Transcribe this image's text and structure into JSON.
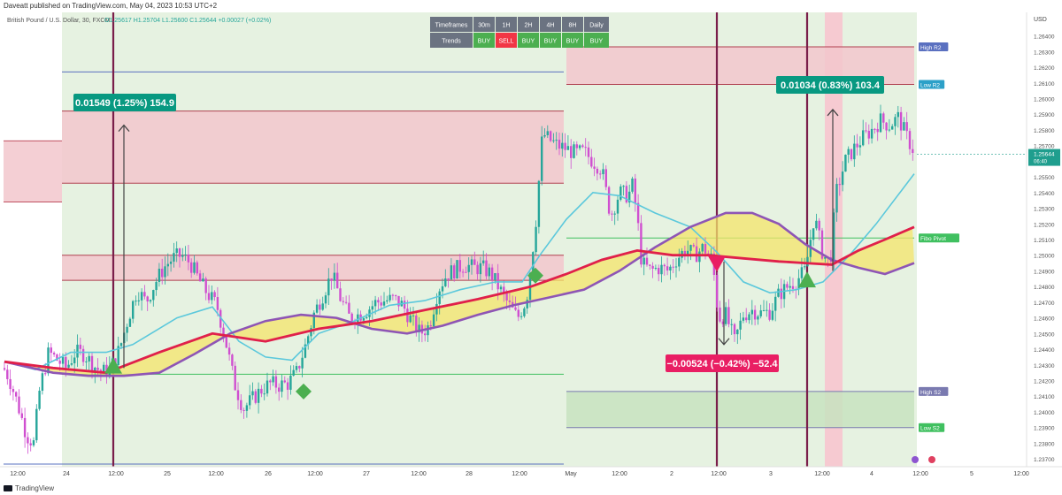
{
  "header": {
    "published": "Daveatt published on TradingView.com, May 04, 2023 10:53 UTC+2"
  },
  "footer": {
    "brand": "TradingView"
  },
  "chart_data": {
    "type": "candlestick",
    "title": "British Pound / U.S. Dollar, 30, FXCM",
    "ohlc": "O1.25617 H1.25704 L1.25600 C1.25644 +0.00027 (+0.02%)",
    "price_axis_label": "USD",
    "ylim": [
      1.2365,
      1.2655
    ],
    "yticks": [
      "1.26400",
      "1.26300",
      "1.26200",
      "1.26100",
      "1.26000",
      "1.25900",
      "1.25800",
      "1.25700",
      "1.25600",
      "1.25500",
      "1.25400",
      "1.25300",
      "1.25200",
      "1.25100",
      "1.25000",
      "1.24900",
      "1.24800",
      "1.24700",
      "1.24600",
      "1.24500",
      "1.24400",
      "1.24300",
      "1.24200",
      "1.24100",
      "1.24000",
      "1.23900",
      "1.23800",
      "1.23700"
    ],
    "xticks": [
      "12:00",
      "24",
      "12:00",
      "25",
      "12:00",
      "26",
      "12:00",
      "27",
      "12:00",
      "28",
      "12:00",
      "May",
      "12:00",
      "2",
      "12:00",
      "3",
      "12:00",
      "4",
      "12:00",
      "5",
      "12:00"
    ],
    "current_price": "1.25644",
    "countdown": "06:40",
    "levels": [
      {
        "label": "High R2",
        "price": 1.2633
      },
      {
        "label": "Low R2",
        "price": 1.2609
      },
      {
        "label": "Fibo Pivot",
        "price": 1.2511
      },
      {
        "label": "High S2",
        "price": 1.2413
      },
      {
        "label": "Low S2",
        "price": 1.239
      }
    ],
    "measures": [
      {
        "label": "0.01549 (1.25%) 154.9",
        "direction": "up"
      },
      {
        "label": "−0.00524 (−0.42%) −52.4",
        "direction": "down"
      },
      {
        "label": "0.01034 (0.83%) 103.4",
        "direction": "up"
      }
    ],
    "trend_table": {
      "row1_label": "Timeframes",
      "row2_label": "Trends",
      "timeframes": [
        "30m",
        "1H",
        "2H",
        "4H",
        "8H",
        "Daily"
      ],
      "trends": [
        "BUY",
        "SELL",
        "BUY",
        "BUY",
        "BUY",
        "BUY"
      ]
    },
    "colors": {
      "bull": "#26a69a",
      "bear": "#d04fd0",
      "buy": "#4caf50",
      "sell": "#f23645",
      "ma_fast": "#5bc8dc",
      "ma_red": "#e0204a",
      "ma_purple": "#8e55b5",
      "zone_red": "#f2c7cc",
      "zone_green": "#dcedd4",
      "label_teal": "#089981",
      "label_red": "#e91e63"
    },
    "price_path": [
      [
        0,
        1.2432
      ],
      [
        10,
        1.2422
      ],
      [
        20,
        1.2405
      ],
      [
        30,
        1.2385
      ],
      [
        38,
        1.238
      ],
      [
        45,
        1.2415
      ],
      [
        55,
        1.2438
      ],
      [
        65,
        1.2433
      ],
      [
        75,
        1.2428
      ],
      [
        85,
        1.2438
      ],
      [
        95,
        1.2437
      ],
      [
        105,
        1.243
      ],
      [
        115,
        1.2425
      ],
      [
        125,
        1.2428
      ],
      [
        135,
        1.244
      ],
      [
        145,
        1.246
      ],
      [
        155,
        1.2478
      ],
      [
        165,
        1.247
      ],
      [
        175,
        1.2482
      ],
      [
        185,
        1.2492
      ],
      [
        195,
        1.2498
      ],
      [
        205,
        1.25
      ],
      [
        215,
        1.2495
      ],
      [
        225,
        1.2484
      ],
      [
        235,
        1.2475
      ],
      [
        245,
        1.2468
      ],
      [
        255,
        1.2445
      ],
      [
        265,
        1.2418
      ],
      [
        275,
        1.2402
      ],
      [
        285,
        1.2408
      ],
      [
        295,
        1.2414
      ],
      [
        305,
        1.2418
      ],
      [
        315,
        1.2417
      ],
      [
        325,
        1.2418
      ],
      [
        335,
        1.2425
      ],
      [
        345,
        1.2442
      ],
      [
        355,
        1.2463
      ],
      [
        365,
        1.2475
      ],
      [
        375,
        1.2488
      ],
      [
        385,
        1.2472
      ],
      [
        395,
        1.246
      ],
      [
        405,
        1.2462
      ],
      [
        415,
        1.2465
      ],
      [
        425,
        1.247
      ],
      [
        435,
        1.2471
      ],
      [
        445,
        1.2472
      ],
      [
        455,
        1.2468
      ],
      [
        465,
        1.2458
      ],
      [
        475,
        1.245
      ],
      [
        485,
        1.2455
      ],
      [
        495,
        1.2478
      ],
      [
        505,
        1.2488
      ],
      [
        515,
        1.2491
      ],
      [
        525,
        1.2494
      ],
      [
        535,
        1.2492
      ],
      [
        545,
        1.2492
      ],
      [
        555,
        1.2488
      ],
      [
        565,
        1.2478
      ],
      [
        575,
        1.2468
      ],
      [
        585,
        1.246
      ],
      [
        595,
        1.2472
      ],
      [
        605,
        1.2518
      ],
      [
        613,
        1.2578
      ],
      [
        620,
        1.2574
      ],
      [
        630,
        1.257
      ],
      [
        640,
        1.2568
      ],
      [
        650,
        1.2565
      ],
      [
        660,
        1.2566
      ],
      [
        670,
        1.256
      ],
      [
        680,
        1.2555
      ],
      [
        690,
        1.2525
      ],
      [
        700,
        1.254
      ],
      [
        710,
        1.2538
      ],
      [
        715,
        1.2545
      ],
      [
        720,
        1.2524
      ],
      [
        725,
        1.2495
      ],
      [
        735,
        1.249
      ],
      [
        745,
        1.2492
      ],
      [
        755,
        1.249
      ],
      [
        765,
        1.2498
      ],
      [
        775,
        1.2504
      ],
      [
        785,
        1.25
      ],
      [
        795,
        1.2505
      ],
      [
        805,
        1.2497
      ],
      [
        812,
        1.246
      ],
      [
        820,
        1.2462
      ],
      [
        830,
        1.2445
      ],
      [
        840,
        1.2462
      ],
      [
        850,
        1.2465
      ],
      [
        860,
        1.2463
      ],
      [
        870,
        1.2464
      ],
      [
        880,
        1.2475
      ],
      [
        890,
        1.248
      ],
      [
        900,
        1.2484
      ],
      [
        910,
        1.249
      ],
      [
        920,
        1.2525
      ],
      [
        930,
        1.25
      ],
      [
        938,
        1.2495
      ],
      [
        945,
        1.254
      ],
      [
        955,
        1.256
      ],
      [
        965,
        1.2568
      ],
      [
        975,
        1.2575
      ],
      [
        985,
        1.258
      ],
      [
        995,
        1.2586
      ],
      [
        1005,
        1.2583
      ],
      [
        1015,
        1.2588
      ],
      [
        1025,
        1.2575
      ],
      [
        1033,
        1.2566
      ]
    ],
    "ma_fast": [
      [
        5,
        1.2432
      ],
      [
        40,
        1.2427
      ],
      [
        80,
        1.2438
      ],
      [
        120,
        1.2438
      ],
      [
        150,
        1.2443
      ],
      [
        200,
        1.246
      ],
      [
        240,
        1.2467
      ],
      [
        270,
        1.2445
      ],
      [
        300,
        1.2435
      ],
      [
        330,
        1.2433
      ],
      [
        360,
        1.245
      ],
      [
        400,
        1.2458
      ],
      [
        440,
        1.2468
      ],
      [
        480,
        1.2471
      ],
      [
        520,
        1.2478
      ],
      [
        560,
        1.2483
      ],
      [
        590,
        1.2483
      ],
      [
        610,
        1.25
      ],
      [
        640,
        1.2523
      ],
      [
        670,
        1.254
      ],
      [
        700,
        1.2538
      ],
      [
        740,
        1.2527
      ],
      [
        780,
        1.2518
      ],
      [
        810,
        1.2502
      ],
      [
        840,
        1.2483
      ],
      [
        870,
        1.2476
      ],
      [
        900,
        1.2478
      ],
      [
        930,
        1.2483
      ],
      [
        960,
        1.25
      ],
      [
        990,
        1.252
      ],
      [
        1033,
        1.2552
      ]
    ],
    "ma_red": [
      [
        5,
        1.2432
      ],
      [
        60,
        1.2428
      ],
      [
        120,
        1.2425
      ],
      [
        180,
        1.2438
      ],
      [
        240,
        1.245
      ],
      [
        300,
        1.2445
      ],
      [
        360,
        1.2453
      ],
      [
        420,
        1.2458
      ],
      [
        480,
        1.2465
      ],
      [
        540,
        1.2472
      ],
      [
        600,
        1.248
      ],
      [
        640,
        1.2488
      ],
      [
        680,
        1.2497
      ],
      [
        720,
        1.2503
      ],
      [
        760,
        1.25
      ],
      [
        800,
        1.25
      ],
      [
        840,
        1.2498
      ],
      [
        880,
        1.2496
      ],
      [
        910,
        1.2495
      ],
      [
        940,
        1.2494
      ],
      [
        970,
        1.2503
      ],
      [
        1000,
        1.251
      ],
      [
        1033,
        1.2518
      ]
    ],
    "ma_purple": [
      [
        5,
        1.2432
      ],
      [
        60,
        1.2425
      ],
      [
        100,
        1.2423
      ],
      [
        140,
        1.2423
      ],
      [
        180,
        1.2425
      ],
      [
        220,
        1.2437
      ],
      [
        260,
        1.245
      ],
      [
        300,
        1.2458
      ],
      [
        340,
        1.2462
      ],
      [
        380,
        1.246
      ],
      [
        420,
        1.2453
      ],
      [
        460,
        1.245
      ],
      [
        500,
        1.2455
      ],
      [
        540,
        1.2462
      ],
      [
        580,
        1.2468
      ],
      [
        620,
        1.2473
      ],
      [
        660,
        1.2478
      ],
      [
        700,
        1.249
      ],
      [
        740,
        1.2505
      ],
      [
        780,
        1.2518
      ],
      [
        820,
        1.2527
      ],
      [
        850,
        1.2527
      ],
      [
        880,
        1.252
      ],
      [
        910,
        1.2507
      ],
      [
        940,
        1.2497
      ],
      [
        970,
        1.2492
      ],
      [
        1000,
        1.2488
      ],
      [
        1033,
        1.2495
      ]
    ]
  }
}
